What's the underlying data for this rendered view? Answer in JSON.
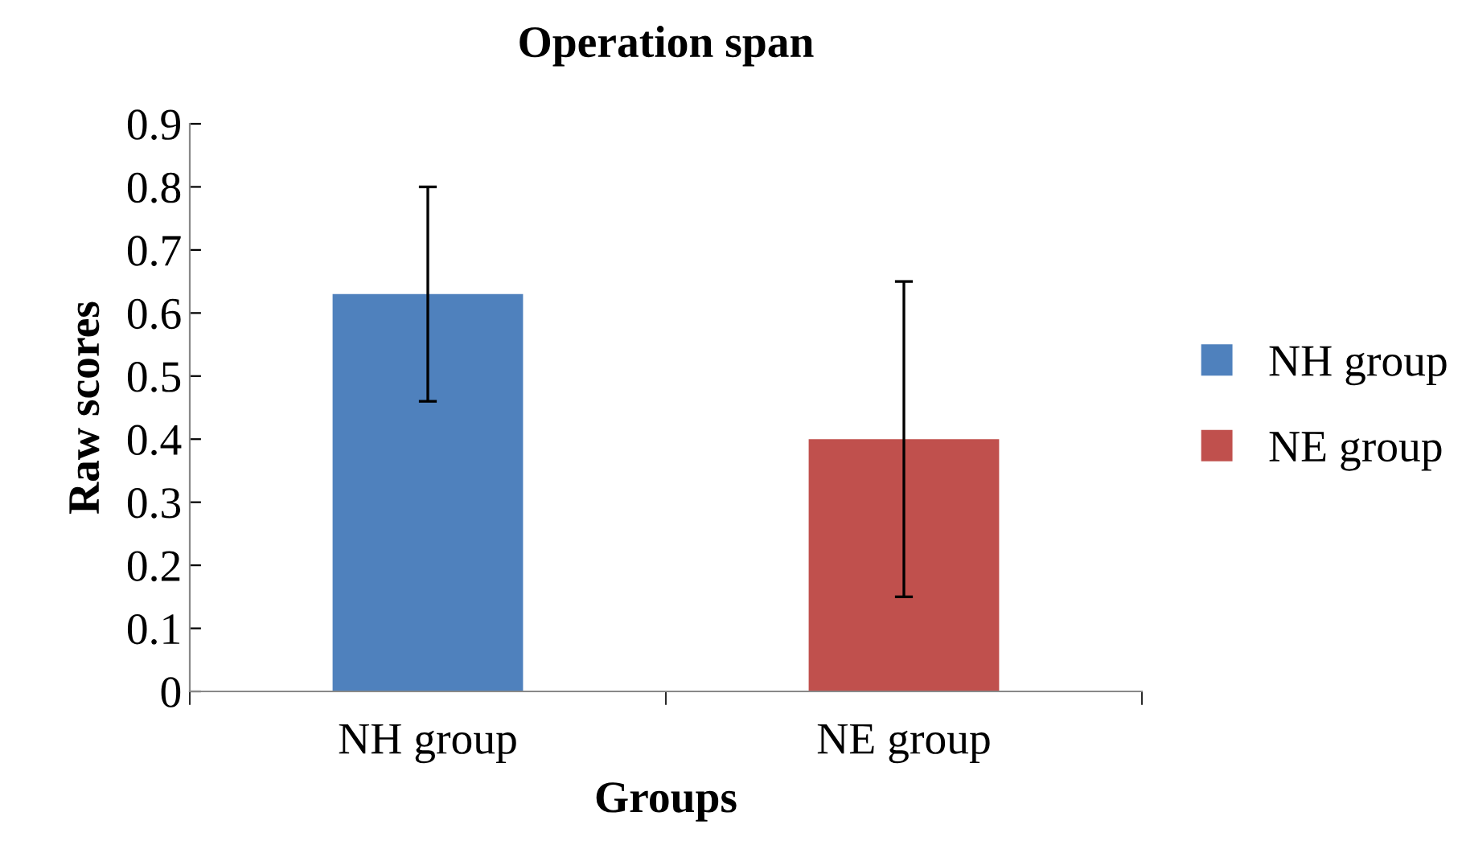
{
  "chart_data": {
    "type": "bar",
    "title": "Operation span",
    "xlabel": "Groups",
    "ylabel": "Raw scores",
    "categories": [
      "NH group",
      "NE group"
    ],
    "series": [
      {
        "name": "NH group",
        "color": "#4f81bd",
        "values": [
          0.63,
          null
        ],
        "errors": [
          0.17,
          null
        ]
      },
      {
        "name": "NE group",
        "color": "#c0504d",
        "values": [
          null,
          0.4
        ],
        "errors": [
          null,
          0.25
        ]
      }
    ],
    "ylim": [
      0,
      0.9
    ],
    "yticks": [
      0,
      0.1,
      0.2,
      0.3,
      0.4,
      0.5,
      0.6,
      0.7,
      0.8,
      0.9
    ],
    "grid": false,
    "legend": "right"
  }
}
